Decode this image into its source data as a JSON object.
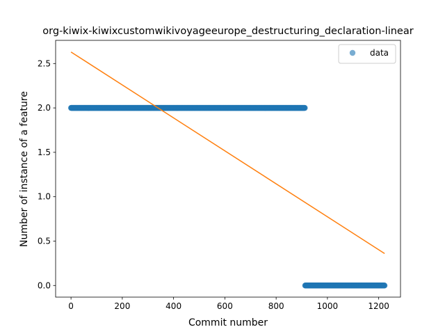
{
  "chart_data": {
    "type": "scatter",
    "title": "org-kiwix-kiwixcustomwikivoyageeurope_destructuring_declaration-linear",
    "xlabel": "Commit number",
    "ylabel": "Number of instance of a feature",
    "xlim": [
      -60,
      1285
    ],
    "ylim": [
      -0.131,
      2.761
    ],
    "xticks": [
      0,
      200,
      400,
      600,
      800,
      1000,
      1200
    ],
    "yticks": [
      0.0,
      0.5,
      1.0,
      1.5,
      2.0,
      2.5
    ],
    "xtick_labels": [
      "0",
      "200",
      "400",
      "600",
      "800",
      "1000",
      "1200"
    ],
    "ytick_labels": [
      "0.0",
      "0.5",
      "1.0",
      "1.5",
      "2.0",
      "2.5"
    ],
    "legend": {
      "position": "top-right",
      "entries": [
        "data"
      ]
    },
    "grid": false,
    "series": [
      {
        "name": "data",
        "kind": "scatter",
        "color": "#1f77b4",
        "segments": [
          {
            "x_start": 0,
            "x_end": 912,
            "y": 2
          },
          {
            "x_start": 913,
            "x_end": 1223,
            "y": 0
          }
        ]
      },
      {
        "kind": "line",
        "color": "#ff7f0e",
        "x": [
          0,
          1223
        ],
        "y": [
          2.63,
          0.36
        ]
      }
    ]
  }
}
